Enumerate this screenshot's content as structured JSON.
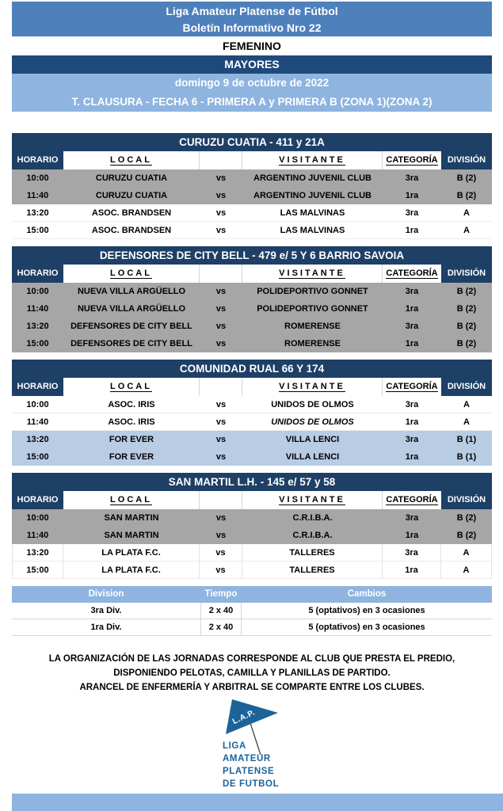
{
  "header": {
    "band1_line1": "Liga Amateur Platense de Fútbol",
    "band1_line2": "Boletín Informativo Nro 22",
    "femenino": "FEMENINO",
    "mayores": "MAYORES",
    "date_line": "domingo 9 de octubre de 2022",
    "tournament_line": "T. CLAUSURA - FECHA 6 - PRIMERA A y PRIMERA B (ZONA 1)(ZONA 2)"
  },
  "columns": {
    "horario": "HORARIO",
    "local": "LOCAL",
    "vs_header": "",
    "visitante": "VISITANTE",
    "categoria": "CATEGORÍA",
    "division": "DIVISIÓN"
  },
  "venues": [
    {
      "title": "CURUZU CUATIA - 411 y 21A",
      "rows": [
        {
          "time": "10:00",
          "local": "CURUZU CUATIA",
          "vs": "vs",
          "visitor": "ARGENTINO JUVENIL CLUB",
          "cat": "3ra",
          "div": "B (2)",
          "bg": "gray"
        },
        {
          "time": "11:40",
          "local": "CURUZU CUATIA",
          "vs": "vs",
          "visitor": "ARGENTINO JUVENIL CLUB",
          "cat": "1ra",
          "div": "B (2)",
          "bg": "gray"
        },
        {
          "time": "13:20",
          "local": "ASOC. BRANDSEN",
          "vs": "vs",
          "visitor": "LAS MALVINAS",
          "cat": "3ra",
          "div": "A",
          "bg": "white"
        },
        {
          "time": "15:00",
          "local": "ASOC. BRANDSEN",
          "vs": "vs",
          "visitor": "LAS MALVINAS",
          "cat": "1ra",
          "div": "A",
          "bg": "white"
        }
      ]
    },
    {
      "title": "DEFENSORES DE CITY BELL - 479 e/ 5 Y 6 BARRIO SAVOIA",
      "rows": [
        {
          "time": "10:00",
          "local": "NUEVA VILLA ARGÜELLO",
          "vs": "vs",
          "visitor": "POLIDEPORTIVO GONNET",
          "cat": "3ra",
          "div": "B (2)",
          "bg": "gray"
        },
        {
          "time": "11:40",
          "local": "NUEVA VILLA ARGÜELLO",
          "vs": "vs",
          "visitor": "POLIDEPORTIVO GONNET",
          "cat": "1ra",
          "div": "B (2)",
          "bg": "gray"
        },
        {
          "time": "13:20",
          "local": "DEFENSORES DE CITY BELL",
          "vs": "vs",
          "visitor": "ROMERENSE",
          "cat": "3ra",
          "div": "B (2)",
          "bg": "gray"
        },
        {
          "time": "15:00",
          "local": "DEFENSORES DE CITY BELL",
          "vs": "vs",
          "visitor": "ROMERENSE",
          "cat": "1ra",
          "div": "B (2)",
          "bg": "gray"
        }
      ]
    },
    {
      "title": "COMUNIDAD RUAL 66 Y 174",
      "rows": [
        {
          "time": "10:00",
          "local": "ASOC. IRIS",
          "vs": "vs",
          "visitor": "UNIDOS DE OLMOS",
          "cat": "3ra",
          "div": "A",
          "bg": "white"
        },
        {
          "time": "11:40",
          "local": "ASOC. IRIS",
          "vs": "vs",
          "visitor": "UNIDOS DE OLMOS",
          "cat": "1ra",
          "div": "A",
          "bg": "white",
          "italic": true
        },
        {
          "time": "13:20",
          "local": "FOR EVER",
          "vs": "vs",
          "visitor": "VILLA LENCI",
          "cat": "3ra",
          "div": "B (1)",
          "bg": "blue"
        },
        {
          "time": "15:00",
          "local": "FOR EVER",
          "vs": "vs",
          "visitor": "VILLA LENCI",
          "cat": "1ra",
          "div": "B (1)",
          "bg": "blue"
        }
      ]
    },
    {
      "title": "SAN MARTIL L.H. - 145 e/ 57 y 58",
      "rows": [
        {
          "time": "10:00",
          "local": "SAN MARTIN",
          "vs": "vs",
          "visitor": "C.R.I.B.A.",
          "cat": "3ra",
          "div": "B (2)",
          "bg": "gray"
        },
        {
          "time": "11:40",
          "local": "SAN MARTIN",
          "vs": "vs",
          "visitor": "C.R.I.B.A.",
          "cat": "1ra",
          "div": "B (2)",
          "bg": "gray"
        },
        {
          "time": "13:20",
          "local": "LA PLATA F.C.",
          "vs": "vs",
          "visitor": "TALLERES",
          "cat": "3ra",
          "div": "A",
          "bg": "white"
        },
        {
          "time": "15:00",
          "local": "LA PLATA F.C.",
          "vs": "vs",
          "visitor": "TALLERES",
          "cat": "1ra",
          "div": "A",
          "bg": "white"
        }
      ]
    }
  ],
  "rules_table": {
    "headers": [
      "Division",
      "Tiempo",
      "Cambios"
    ],
    "rows": [
      [
        "3ra Div.",
        "2 x 40",
        "5 (optativos) en 3 ocasiones"
      ],
      [
        "1ra Div.",
        "2 x 40",
        "5 (optativos) en 3 ocasiones"
      ]
    ]
  },
  "notes": [
    "LA ORGANIZACIÓN DE LAS JORNADAS CORRESPONDE AL CLUB QUE PRESTA EL PREDIO,",
    "DISPONIENDO PELOTAS, CAMILLA Y PLANILLAS DE PARTIDO.",
    "ARANCEL DE ENFERMERÍA Y ARBITRAL SE COMPARTE ENTRE LOS CLUBES."
  ],
  "logo": {
    "flag_text": "L.A.P.",
    "lines": [
      "LIGA",
      "AMATEUR",
      "PLATENSE",
      "DE FUTBOL"
    ]
  },
  "colors": {
    "blue_mid": "#4E80BC",
    "navy": "#20497B",
    "navy_dark": "#1E3F66",
    "blue_light": "#8EB4DF",
    "row_gray": "#A6A6A6",
    "row_blue": "#B8CCE4",
    "logo_blue": "#1C6398"
  }
}
